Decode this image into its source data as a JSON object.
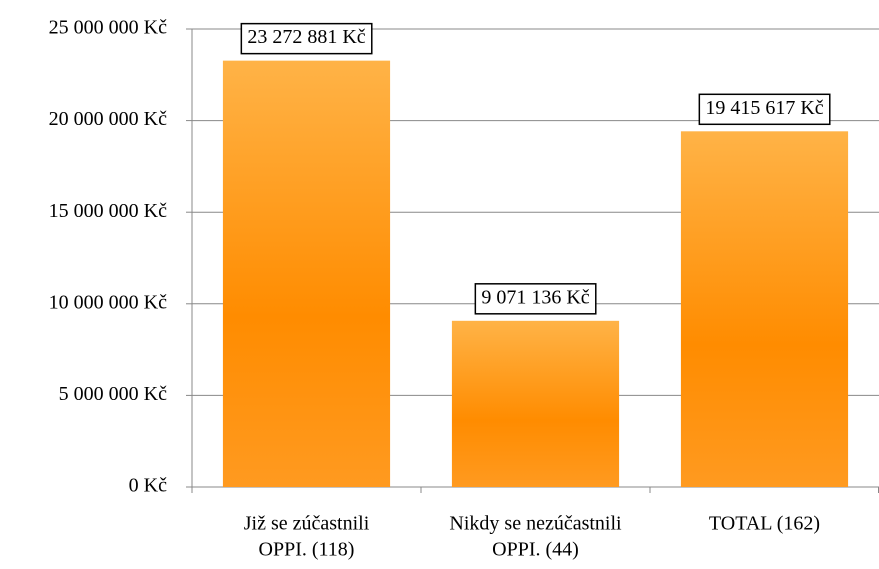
{
  "chart_data": {
    "type": "bar",
    "categories": [
      [
        "Již se zúčastnili",
        "OPPI. (118)"
      ],
      [
        "Nikdy se nezúčastnili",
        "OPPI. (44)"
      ],
      [
        "TOTAL (162)"
      ]
    ],
    "values": [
      23272881,
      9071136,
      19415617
    ],
    "value_labels": [
      "23 272 881 Kč",
      "9 071 136 Kč",
      "19 415 617 Kč"
    ],
    "color": "#ff9010",
    "ylim": [
      0,
      25000000
    ],
    "yticks": [
      {
        "value": 0,
        "label": "0 Kč"
      },
      {
        "value": 5000000,
        "label": "5 000 000 Kč"
      },
      {
        "value": 10000000,
        "label": "10 000 000 Kč"
      },
      {
        "value": 15000000,
        "label": "15 000 000 Kč"
      },
      {
        "value": 20000000,
        "label": "20 000 000 Kč"
      },
      {
        "value": 25000000,
        "label": "25 000 000 Kč"
      }
    ],
    "grid": true
  }
}
